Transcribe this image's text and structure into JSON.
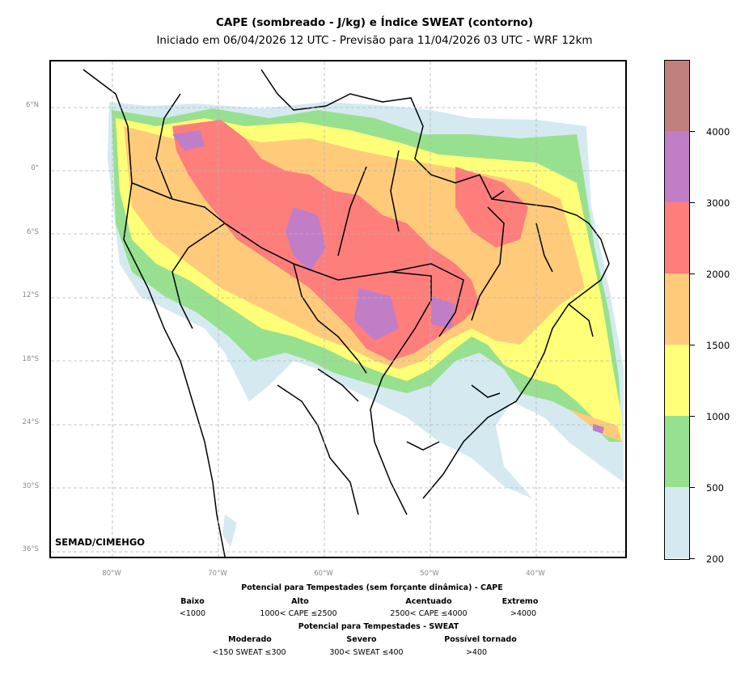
{
  "title": "CAPE (sombreado - J/kg) e Índice SWEAT (contorno)",
  "subtitle": "Iniciado em 06/04/2026 12 UTC - Previsão para 11/04/2026 03 UTC - WRF 12km",
  "credit": "SEMAD/CIMEHGO",
  "lat_labels": [
    "6°N",
    "0°",
    "6°S",
    "12°S",
    "18°S",
    "24°S",
    "30°S",
    "36°S"
  ],
  "lon_labels": [
    "80°W",
    "70°W",
    "60°W",
    "50°W",
    "40°W"
  ],
  "colorbar": {
    "ticks": [
      "200",
      "500",
      "1000",
      "1500",
      "2000",
      "3000",
      "4000"
    ],
    "colors": [
      "#d4eaf0",
      "#97e08f",
      "#ffff78",
      "#ffcb7b",
      "#fe7e7c",
      "#c07ec6",
      "#bf807e"
    ]
  },
  "colors": {
    "grid": "#b4b4b4",
    "border": "#000000",
    "water": "#ffffff"
  },
  "legend": {
    "cape_title": "Potencial para Tempestades (sem forçante dinâmica) - CAPE",
    "cape_categories": [
      {
        "name": "Baixo",
        "range": "<1000"
      },
      {
        "name": "Alto",
        "range": "1000< CAPE ≤2500"
      },
      {
        "name": "Acentuado",
        "range": "2500< CAPE ≤4000"
      },
      {
        "name": "Extremo",
        "range": ">4000"
      }
    ],
    "sweat_title": "Potencial para Tempestades - SWEAT",
    "sweat_categories": [
      {
        "name": "Moderado",
        "range": "<150 SWEAT ≤300"
      },
      {
        "name": "Severo",
        "range": "300< SWEAT ≤400"
      },
      {
        "name": "Possível tornado",
        "range": ">400"
      }
    ]
  }
}
